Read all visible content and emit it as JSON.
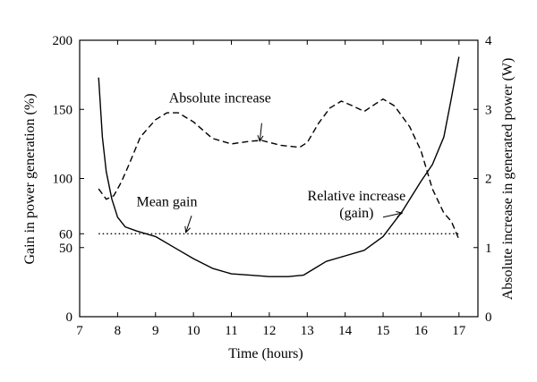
{
  "chart_data": {
    "type": "line",
    "title": "",
    "xlabel": "Time (hours)",
    "ylabel": "Gain in power generation (%)",
    "y2label": "Absolute increase in generated power (W)",
    "xlim": [
      7,
      17.5
    ],
    "ylim": [
      0,
      200
    ],
    "y2lim": [
      0,
      4
    ],
    "xticks": [
      7,
      8,
      9,
      10,
      11,
      12,
      13,
      14,
      15,
      16,
      17
    ],
    "yticks": [
      0,
      50,
      60,
      100,
      150,
      200
    ],
    "y2ticks": [
      0,
      1,
      2,
      3,
      4
    ],
    "grid": false,
    "series": [
      {
        "name": "Relative increase (gain)",
        "axis": "left",
        "style": "solid",
        "x": [
          7.5,
          7.6,
          7.7,
          7.85,
          8.0,
          8.2,
          8.5,
          9.0,
          9.5,
          10.0,
          10.5,
          11.0,
          11.5,
          12.0,
          12.5,
          12.9,
          13.2,
          13.5,
          14.0,
          14.5,
          15.0,
          15.5,
          16.0,
          16.3,
          16.6,
          16.8,
          17.0
        ],
        "values": [
          173,
          130,
          105,
          85,
          72,
          65,
          62,
          58,
          50,
          42,
          35,
          31,
          30,
          29,
          29,
          30,
          35,
          40,
          44,
          48,
          58,
          76,
          98,
          110,
          130,
          158,
          188
        ]
      },
      {
        "name": "Absolute increase",
        "axis": "right",
        "style": "dashed",
        "x": [
          7.5,
          7.7,
          7.9,
          8.1,
          8.3,
          8.6,
          9.0,
          9.3,
          9.6,
          10.0,
          10.5,
          11.0,
          11.5,
          11.8,
          12.3,
          12.8,
          13.0,
          13.3,
          13.6,
          13.9,
          14.2,
          14.5,
          14.8,
          15.0,
          15.3,
          15.7,
          16.0,
          16.3,
          16.6,
          16.8,
          17.0
        ],
        "values": [
          1.85,
          1.7,
          1.75,
          1.95,
          2.2,
          2.6,
          2.85,
          2.95,
          2.95,
          2.82,
          2.58,
          2.5,
          2.54,
          2.55,
          2.48,
          2.45,
          2.52,
          2.8,
          3.02,
          3.12,
          3.05,
          2.97,
          3.08,
          3.15,
          3.05,
          2.75,
          2.4,
          1.85,
          1.5,
          1.38,
          1.12
        ]
      },
      {
        "name": "Mean gain",
        "axis": "left",
        "style": "dotted",
        "x": [
          7.5,
          17.0
        ],
        "values": [
          60,
          60
        ]
      }
    ],
    "annotations": [
      {
        "text": "Absolute increase",
        "x": 10.7,
        "y": 155
      },
      {
        "text": "Mean gain",
        "x": 9.3,
        "y": 80
      },
      {
        "text": "Relative increase",
        "x": 14.3,
        "y": 84
      },
      {
        "text": "(gain)",
        "x": 14.3,
        "y": 72
      }
    ],
    "arrows": [
      {
        "from_x": 11.8,
        "from_y": 140,
        "to_x": 11.75,
        "to_y": 127
      },
      {
        "from_x": 9.95,
        "from_y": 73,
        "to_x": 9.8,
        "to_y": 61
      },
      {
        "from_x": 15.0,
        "from_y": 72,
        "to_x": 15.5,
        "to_y": 75
      }
    ]
  }
}
